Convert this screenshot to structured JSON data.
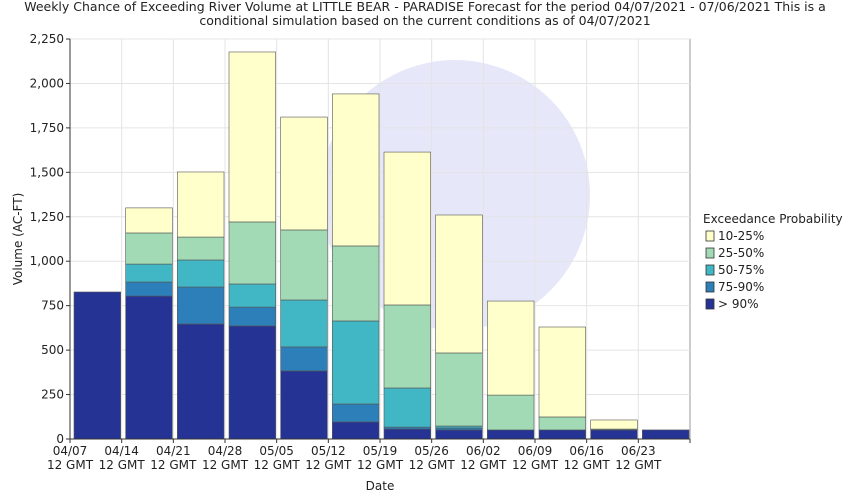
{
  "chart_data": {
    "type": "stacked-bar",
    "title": "Weekly Chance of Exceeding River Volume at LITTLE BEAR - PARADISE Forecast for the period 04/07/2021 - 07/06/2021 This is a conditional simulation based on the current conditions as of 04/07/2021",
    "x_label": "Date",
    "y_label": "Volume (AC-FT)",
    "legend_title": "Exceedance Probability",
    "legend": "right",
    "grid": true,
    "categories": [
      "04/07\n12 GMT",
      "04/14\n12 GMT",
      "04/21\n12 GMT",
      "04/28\n12 GMT",
      "05/05\n12 GMT",
      "05/12\n12 GMT",
      "05/19\n12 GMT",
      "05/26\n12 GMT",
      "06/02\n12 GMT",
      "06/09\n12 GMT",
      "06/16\n12 GMT",
      "06/23\n12 GMT",
      null
    ],
    "ylim": [
      0,
      2250
    ],
    "yticks": [
      0,
      250,
      500,
      750,
      {
        "value": 1000,
        "label": "1,000"
      },
      {
        "value": 1250,
        "label": "1,250"
      },
      {
        "value": 1500,
        "label": "1,500"
      },
      {
        "value": 1750,
        "label": "1,750"
      },
      {
        "value": 2000,
        "label": "2,000"
      },
      {
        "value": 2250,
        "label": "2,250"
      }
    ],
    "series": [
      {
        "name": "> 90%",
        "color": "#253494",
        "values": [
          827,
          804,
          647,
          636,
          383,
          96,
          56,
          51,
          51,
          51,
          51,
          51,
          null
        ]
      },
      {
        "name": "75-90%",
        "color": "#2c7fb8",
        "values": [
          0,
          79,
          208,
          106,
          135,
          101,
          11,
          11,
          0,
          0,
          0,
          0,
          null
        ]
      },
      {
        "name": "50-75%",
        "color": "#41b6c4",
        "values": [
          0,
          101,
          152,
          130,
          264,
          467,
          220,
          11,
          0,
          0,
          0,
          0,
          null
        ]
      },
      {
        "name": "25-50%",
        "color": "#a1dab4",
        "values": [
          0,
          175,
          129,
          349,
          394,
          422,
          467,
          411,
          196,
          73,
          5,
          0,
          null
        ]
      },
      {
        "name": "10-25%",
        "color": "#ffffcc",
        "values": [
          0,
          141,
          366,
          956,
          635,
          855,
          860,
          776,
          529,
          506,
          51,
          0,
          null
        ]
      }
    ]
  }
}
